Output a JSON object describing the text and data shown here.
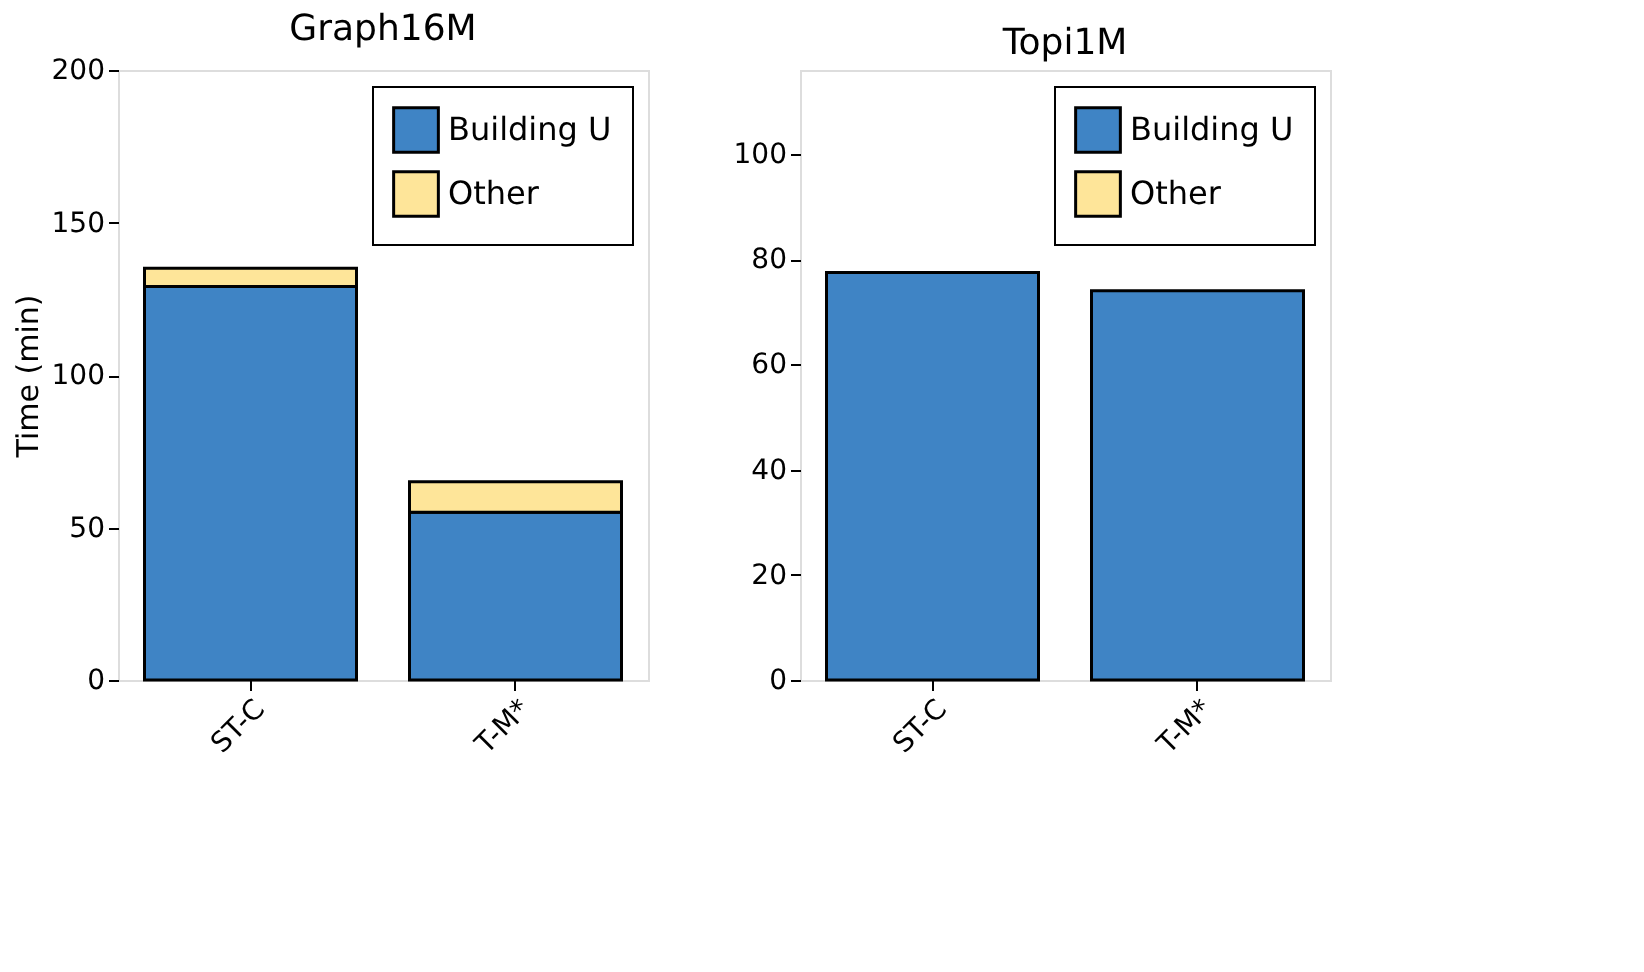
{
  "chart_data": [
    {
      "type": "bar",
      "title": "Graph16M",
      "ylabel": "Time (min)",
      "categories": [
        "ST-C",
        "T-M*"
      ],
      "stacked": true,
      "legend": "top right",
      "grid": false,
      "ylim": [
        0,
        200
      ],
      "yticks": [
        0,
        50,
        100,
        150,
        200
      ],
      "series": [
        {
          "name": "Building U",
          "color": "#3f84c5",
          "values": [
            129,
            55
          ]
        },
        {
          "name": "Other",
          "color": "#fee599",
          "values": [
            6,
            10
          ]
        }
      ]
    },
    {
      "type": "bar",
      "title": "Topi1M",
      "categories": [
        "ST-C",
        "T-M*"
      ],
      "stacked": true,
      "legend": "top right",
      "grid": false,
      "ylim": [
        0,
        116
      ],
      "yticks": [
        0,
        20,
        40,
        60,
        80,
        100
      ],
      "series": [
        {
          "name": "Building U",
          "color": "#3f84c5",
          "values": [
            77.5,
            74
          ]
        },
        {
          "name": "Other",
          "color": "#fee599",
          "values": [
            null,
            null
          ]
        }
      ]
    }
  ]
}
